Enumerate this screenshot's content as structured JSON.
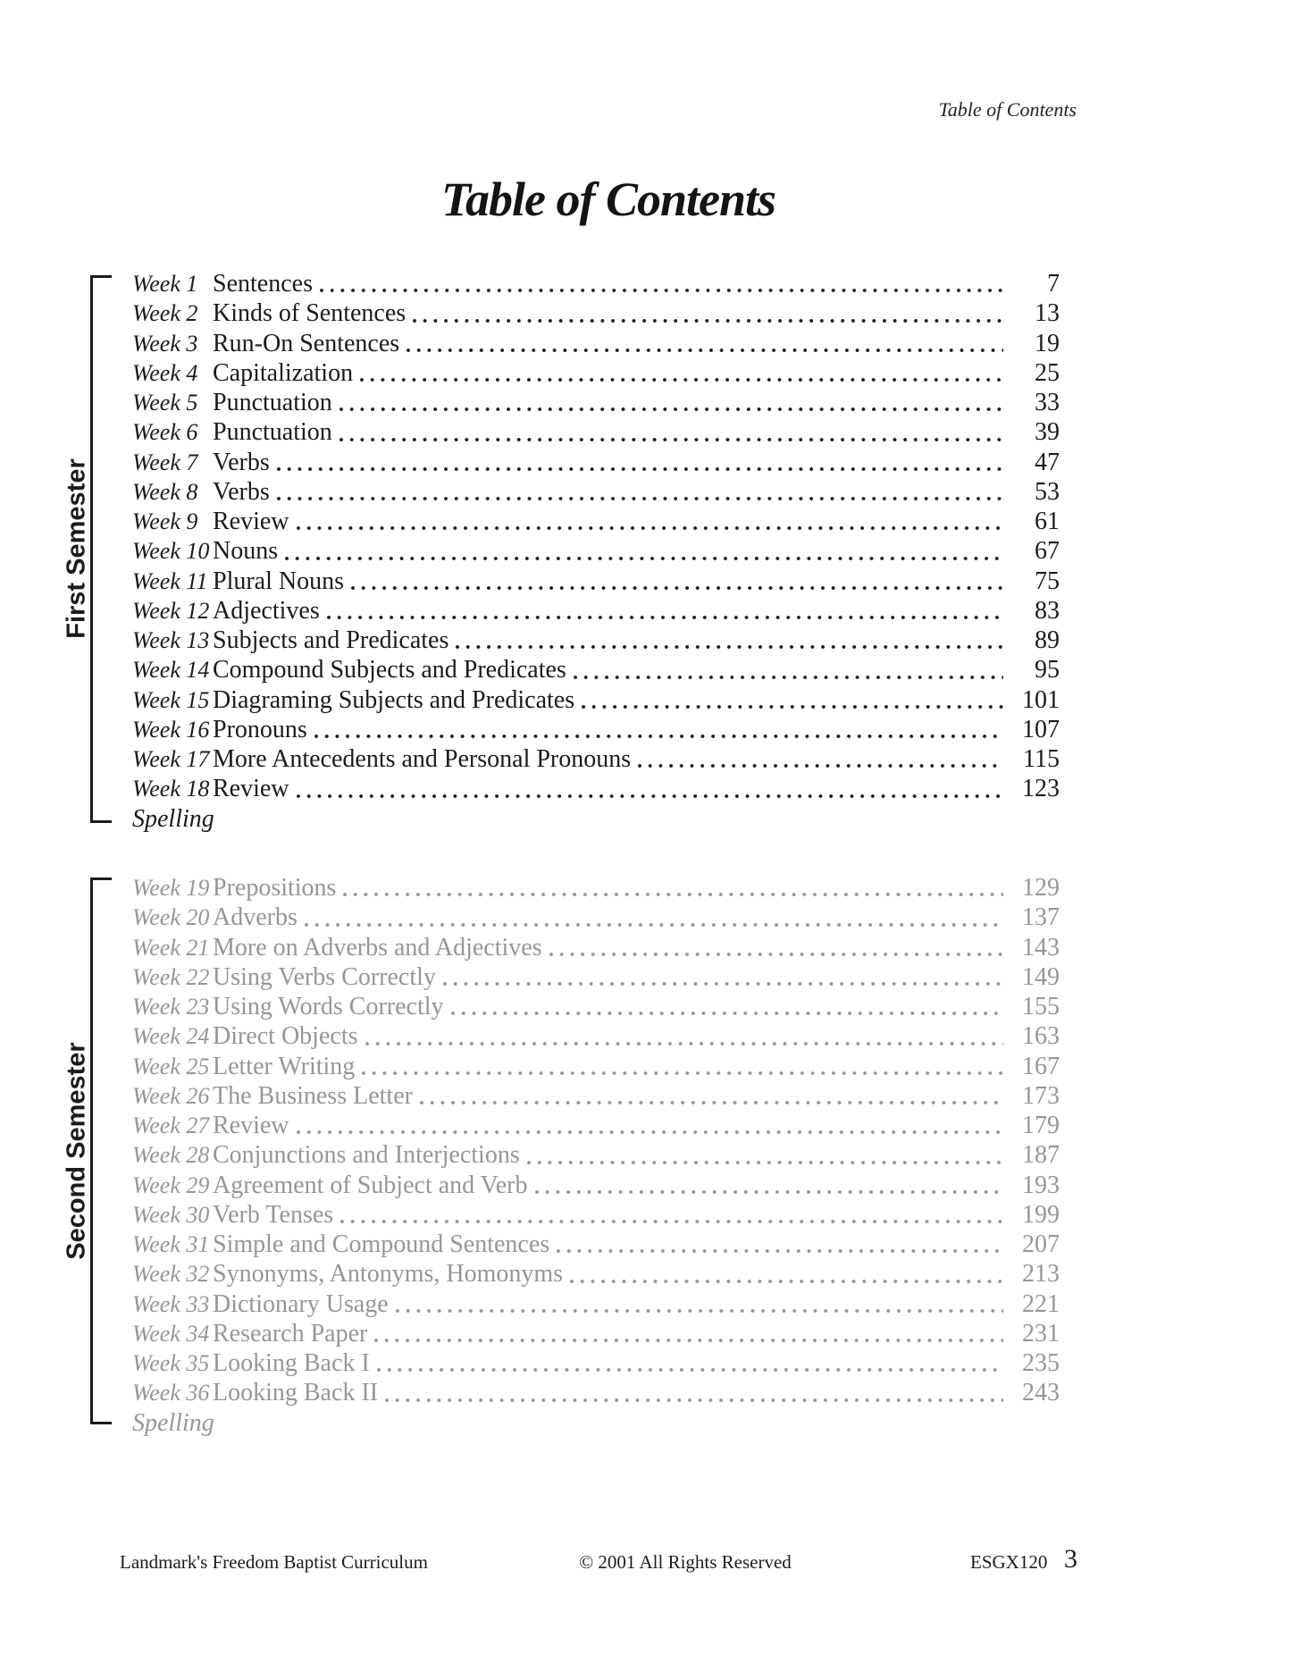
{
  "page": {
    "running_header": "Table of Contents",
    "title": "Table of Contents"
  },
  "sections": [
    {
      "label": "First Semester",
      "color": "#1b1b1b",
      "footer_label": "Spelling",
      "rows": [
        {
          "week": "Week 1",
          "title": "Sentences",
          "page": "7"
        },
        {
          "week": "Week 2",
          "title": "Kinds of Sentences",
          "page": "13"
        },
        {
          "week": "Week 3",
          "title": "Run-On Sentences",
          "page": "19"
        },
        {
          "week": "Week 4",
          "title": "Capitalization",
          "page": "25"
        },
        {
          "week": "Week 5",
          "title": "Punctuation",
          "page": "33"
        },
        {
          "week": "Week 6",
          "title": "Punctuation",
          "page": "39"
        },
        {
          "week": "Week 7",
          "title": "Verbs",
          "page": "47"
        },
        {
          "week": "Week 8",
          "title": "Verbs",
          "page": "53"
        },
        {
          "week": "Week 9",
          "title": "Review",
          "page": "61"
        },
        {
          "week": "Week 10",
          "title": "Nouns",
          "page": "67"
        },
        {
          "week": "Week 11",
          "title": "Plural Nouns",
          "page": "75"
        },
        {
          "week": "Week 12",
          "title": "Adjectives",
          "page": "83"
        },
        {
          "week": "Week 13",
          "title": "Subjects and Predicates",
          "page": "89"
        },
        {
          "week": "Week 14",
          "title": "Compound Subjects and Predicates",
          "page": "95"
        },
        {
          "week": "Week 15",
          "title": "Diagraming Subjects and Predicates",
          "page": "101"
        },
        {
          "week": "Week 16",
          "title": "Pronouns",
          "page": "107"
        },
        {
          "week": "Week 17",
          "title": "More Antecedents and Personal Pronouns",
          "page": "115"
        },
        {
          "week": "Week 18",
          "title": "Review",
          "page": "123"
        }
      ]
    },
    {
      "label": "Second Semester",
      "color": "#969696",
      "footer_label": "Spelling",
      "rows": [
        {
          "week": "Week 19",
          "title": "Prepositions",
          "page": "129"
        },
        {
          "week": "Week 20",
          "title": "Adverbs",
          "page": "137"
        },
        {
          "week": "Week 21",
          "title": "More on Adverbs and Adjectives",
          "page": "143"
        },
        {
          "week": "Week 22",
          "title": "Using Verbs Correctly",
          "page": "149"
        },
        {
          "week": "Week 23",
          "title": "Using Words Correctly",
          "page": "155"
        },
        {
          "week": "Week 24",
          "title": "Direct Objects",
          "page": "163"
        },
        {
          "week": "Week 25",
          "title": "Letter Writing",
          "page": "167"
        },
        {
          "week": "Week 26",
          "title": "The Business Letter",
          "page": "173"
        },
        {
          "week": "Week 27",
          "title": "Review",
          "page": "179"
        },
        {
          "week": "Week 28",
          "title": "Conjunctions and Interjections",
          "page": "187"
        },
        {
          "week": "Week 29",
          "title": "Agreement of Subject and Verb",
          "page": "193"
        },
        {
          "week": "Week 30",
          "title": "Verb Tenses",
          "page": "199"
        },
        {
          "week": "Week 31",
          "title": "Simple and Compound Sentences",
          "page": "207"
        },
        {
          "week": "Week 32",
          "title": "Synonyms, Antonyms, Homonyms",
          "page": "213"
        },
        {
          "week": "Week 33",
          "title": "Dictionary Usage",
          "page": "221"
        },
        {
          "week": "Week 34",
          "title": "Research Paper",
          "page": "231"
        },
        {
          "week": "Week 35",
          "title": "Looking Back I",
          "page": "235"
        },
        {
          "week": "Week 36",
          "title": "Looking Back II",
          "page": "243"
        }
      ]
    }
  ],
  "footer": {
    "left": "Landmark's Freedom Baptist Curriculum",
    "center": "© 2001 All Rights Reserved",
    "code": "ESGX120",
    "page_number": "3"
  }
}
